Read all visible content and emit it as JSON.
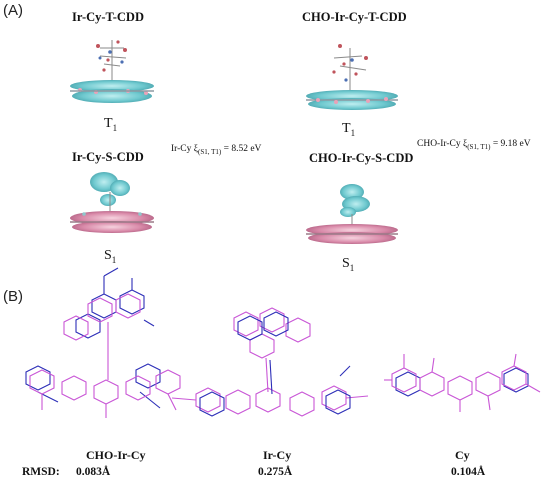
{
  "panel_a": {
    "label": "(A)",
    "top_left": {
      "title": "Ir-Cy-T-CDD",
      "state": "T",
      "state_sub": "1"
    },
    "top_right": {
      "title": "CHO-Ir-Cy-T-CDD",
      "state": "T",
      "state_sub": "1"
    },
    "bottom_left": {
      "title": "Ir-Cy-S-CDD",
      "state": "S",
      "state_sub": "1"
    },
    "bottom_right": {
      "title": "CHO-Ir-Cy-S-CDD",
      "state": "S",
      "state_sub": "1"
    },
    "gap_left": {
      "prefix": "Ir-Cy ξ",
      "sub": "(S1, T1)",
      "suffix": " = 8.52 eV"
    },
    "gap_right": {
      "prefix": "CHO-Ir-Cy ξ",
      "sub": "(S1, T1)",
      "suffix": " = 9.18 eV"
    }
  },
  "panel_b": {
    "label": "(B)",
    "rmsd_label": "RMSD:",
    "molecules": [
      {
        "name": "CHO-Ir-Cy",
        "rmsd": "0.083Å"
      },
      {
        "name": "Ir-Cy",
        "rmsd": "0.275Å"
      },
      {
        "name": "Cy",
        "rmsd": "0.104Å"
      }
    ]
  },
  "colors": {
    "cdd_cyan": "#6fc9cf",
    "cdd_pink": "#d98aa9",
    "blue_structure": "#2d2fb8",
    "magenta_structure": "#c957d6"
  }
}
